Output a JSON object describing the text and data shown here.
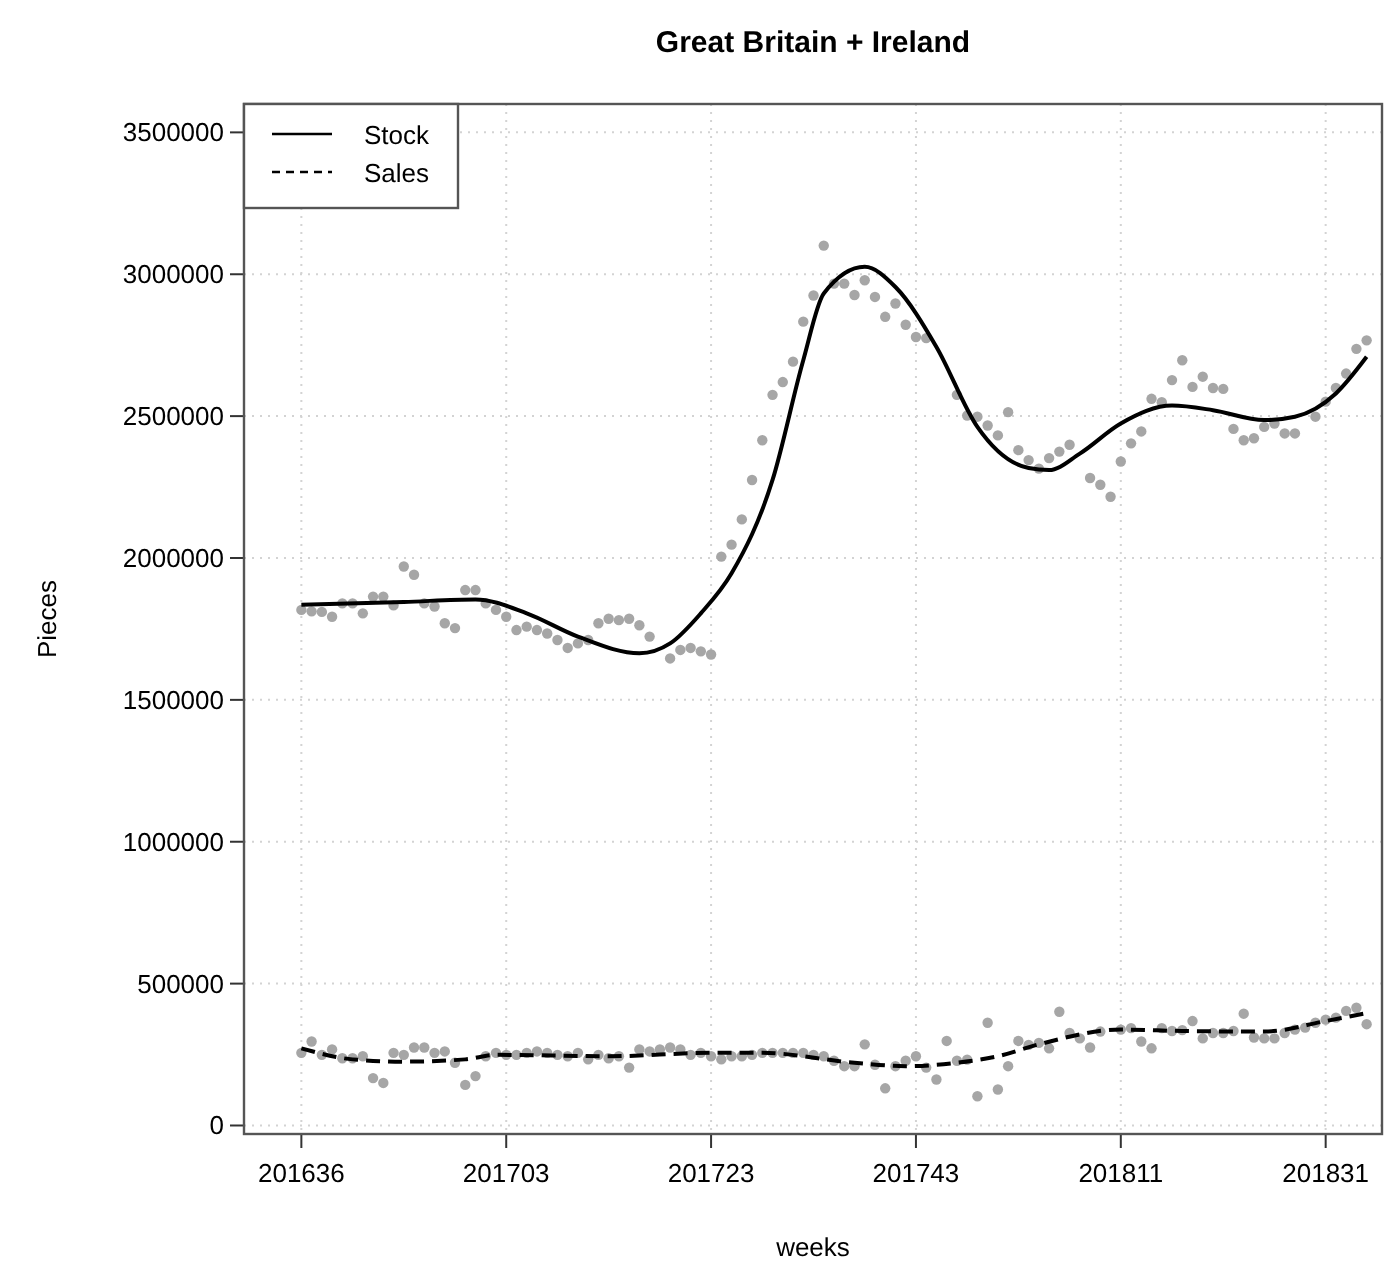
{
  "chart_data": {
    "type": "scatter",
    "title": "Great Britain + Ireland",
    "xlabel": "weeks",
    "ylabel": "Pieces",
    "categories": [
      "201636",
      null,
      null,
      null,
      null,
      null,
      null,
      null,
      null,
      null,
      null,
      null,
      null,
      null,
      null,
      null,
      null,
      null,
      null,
      null,
      "201703",
      null,
      null,
      null,
      null,
      null,
      null,
      null,
      null,
      null,
      null,
      null,
      null,
      null,
      null,
      null,
      null,
      null,
      null,
      null,
      "201723",
      null,
      null,
      null,
      null,
      null,
      null,
      null,
      null,
      null,
      null,
      null,
      null,
      null,
      null,
      null,
      null,
      null,
      null,
      null,
      "201743",
      null,
      null,
      null,
      null,
      null,
      null,
      null,
      null,
      null,
      null,
      null,
      null,
      null,
      null,
      null,
      null,
      null,
      null,
      null,
      "201811",
      null,
      null,
      null,
      null,
      null,
      null,
      null,
      null,
      null,
      null,
      null,
      null,
      null,
      null,
      null,
      null,
      null,
      null,
      null,
      "201831",
      null,
      null,
      null,
      null
    ],
    "ylim": [
      -30000,
      3600000
    ],
    "yticks": [
      0,
      500000,
      1000000,
      1500000,
      2000000,
      2500000,
      3000000,
      3500000
    ],
    "grid": true,
    "legend": "top left",
    "series": [
      {
        "marker": "circle",
        "color": "#a6a6a6",
        "values": [
          1817000,
          1812000,
          1810000,
          1793000,
          1840000,
          1840000,
          1805000,
          1864000,
          1864000,
          1833000,
          1970000,
          1941000,
          1840000,
          1829000,
          1770000,
          1753000,
          1887000,
          1887000,
          1840000,
          1817000,
          1793000,
          1746000,
          1758000,
          1746000,
          1734000,
          1711000,
          1683000,
          1699000,
          1711000,
          1770000,
          1786000,
          1781000,
          1786000,
          1763000,
          1723000,
          null,
          1646000,
          1676000,
          1683000,
          1671000,
          1660000,
          2005000,
          2047000,
          2136000,
          2275000,
          2415000,
          2575000,
          2620000,
          2692000,
          2833000,
          2925000,
          3101000,
          2967000,
          2967000,
          2927000,
          2979000,
          2920000,
          2850000,
          2897000,
          2822000,
          2779000,
          2775000,
          null,
          null,
          2575000,
          2502000,
          2498000,
          2467000,
          2432000,
          2514000,
          2380000,
          2345000,
          2315000,
          2352000,
          2375000,
          2399000,
          null,
          2282000,
          2258000,
          2216000,
          2340000,
          2404000,
          2446000,
          2561000,
          2549000,
          2627000,
          2697000,
          2603000,
          2639000,
          2599000,
          2596000,
          2455000,
          2415000,
          2422000,
          2462000,
          2474000,
          2439000,
          2439000,
          null,
          2498000,
          2551000,
          2599000,
          2650000,
          2737000,
          2767000
        ]
      },
      {
        "marker": "circle",
        "color": "#a6a6a6",
        "values": [
          256000,
          296000,
          249000,
          268000,
          237000,
          237000,
          244000,
          167000,
          150000,
          256000,
          249000,
          275000,
          275000,
          256000,
          261000,
          221000,
          143000,
          174000,
          244000,
          256000,
          249000,
          249000,
          256000,
          261000,
          256000,
          249000,
          244000,
          256000,
          233000,
          249000,
          237000,
          244000,
          204000,
          268000,
          261000,
          268000,
          275000,
          268000,
          249000,
          256000,
          244000,
          233000,
          244000,
          244000,
          249000,
          256000,
          256000,
          256000,
          256000,
          256000,
          249000,
          244000,
          228000,
          209000,
          209000,
          286000,
          214000,
          131000,
          209000,
          228000,
          244000,
          204000,
          162000,
          298000,
          228000,
          232000,
          103000,
          362000,
          127000,
          209000,
          298000,
          284000,
          291000,
          272000,
          401000,
          326000,
          307000,
          275000,
          331000,
          null,
          338000,
          343000,
          296000,
          272000,
          343000,
          333000,
          336000,
          368000,
          307000,
          326000,
          326000,
          333000,
          394000,
          310000,
          307000,
          307000,
          326000,
          338000,
          345000,
          362000,
          373000,
          380000,
          404000,
          415000,
          357000
        ]
      },
      {
        "type": "line",
        "name": "Stock",
        "color": "#000000",
        "line_style": "solid",
        "marker": "none",
        "values": [
          1835000,
          null,
          null,
          null,
          null,
          null,
          null,
          null,
          null,
          null,
          1845000,
          null,
          null,
          null,
          null,
          null,
          null,
          1854000,
          null,
          null,
          null,
          null,
          1805000,
          null,
          null,
          null,
          null,
          1723000,
          null,
          null,
          null,
          null,
          null,
          1664000,
          null,
          null,
          1699000,
          null,
          null,
          1805000,
          null,
          null,
          1946000,
          null,
          null,
          null,
          2275000,
          null,
          null,
          2697000,
          null,
          2932000,
          null,
          null,
          null,
          3026000,
          null,
          null,
          2955000,
          null,
          null,
          null,
          2744000,
          null,
          null,
          null,
          2462000,
          null,
          null,
          null,
          null,
          2317000,
          null,
          2310000,
          null,
          null,
          2368000,
          null,
          null,
          null,
          2474000,
          null,
          null,
          null,
          null,
          2537000,
          null,
          null,
          null,
          2521000,
          null,
          null,
          null,
          null,
          2486000,
          null,
          null,
          2498000,
          null,
          null,
          null,
          2580000,
          null,
          null,
          2709000
        ]
      },
      {
        "type": "line",
        "name": "Sales",
        "color": "#000000",
        "line_style": "dashed",
        "marker": "none",
        "values": [
          272000,
          null,
          null,
          null,
          null,
          233000,
          null,
          null,
          null,
          null,
          225000,
          null,
          null,
          null,
          null,
          null,
          233000,
          null,
          null,
          249000,
          null,
          null,
          null,
          null,
          null,
          null,
          null,
          null,
          null,
          null,
          244000,
          null,
          null,
          null,
          null,
          null,
          null,
          null,
          null,
          null,
          256000,
          null,
          null,
          null,
          null,
          256000,
          null,
          null,
          null,
          null,
          null,
          null,
          null,
          null,
          221000,
          null,
          null,
          null,
          null,
          209000,
          null,
          null,
          null,
          null,
          221000,
          null,
          null,
          null,
          244000,
          null,
          null,
          null,
          286000,
          null,
          null,
          null,
          null,
          null,
          null,
          null,
          338000,
          null,
          null,
          null,
          null,
          null,
          333000,
          null,
          null,
          null,
          null,
          null,
          null,
          null,
          331000,
          null,
          null,
          null,
          null,
          null,
          368000,
          null,
          null,
          null,
          396000
        ]
      }
    ]
  }
}
